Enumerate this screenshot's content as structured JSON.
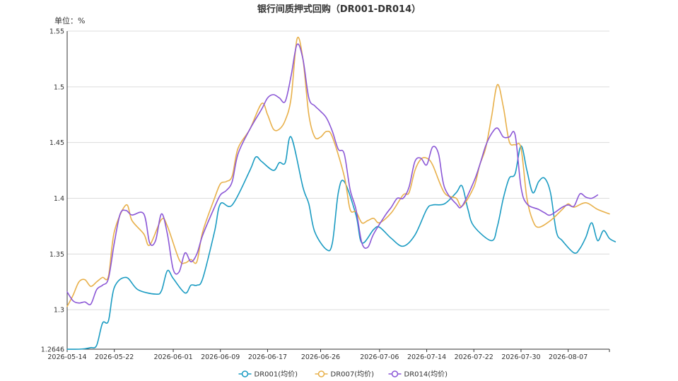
{
  "chart_data": {
    "type": "line",
    "title": "银行间质押式回购（DR001-DR014）",
    "unit_label": "单位：%",
    "xlabel": "",
    "ylabel": "",
    "ylim": [
      1.2646,
      1.55
    ],
    "y_ticks": [
      1.2646,
      1.3,
      1.35,
      1.4,
      1.45,
      1.5,
      1.55
    ],
    "y_tick_labels": [
      "1.2646",
      "1.3",
      "1.35",
      "1.4",
      "1.45",
      "1.5",
      "1.55"
    ],
    "x_range": [
      "2026-05-14",
      "2026-08-14"
    ],
    "x_ticks": [
      "2026-05-14",
      "2026-05-22",
      "2026-06-01",
      "2026-06-09",
      "2026-06-17",
      "2026-06-26",
      "2026-07-06",
      "2026-07-14",
      "2026-07-22",
      "2026-07-30",
      "2026-08-07"
    ],
    "grid": "horizontal",
    "legend_position": "bottom",
    "series": [
      {
        "name": "DR001(均价)",
        "color": "#1a9bc2",
        "points": [
          [
            "2026-05-14",
            1.2646
          ],
          [
            "2026-05-16",
            1.2646
          ],
          [
            "2026-05-17",
            1.265
          ],
          [
            "2026-05-18",
            1.266
          ],
          [
            "2026-05-19",
            1.268
          ],
          [
            "2026-05-20",
            1.288
          ],
          [
            "2026-05-21",
            1.29
          ],
          [
            "2026-05-22",
            1.32
          ],
          [
            "2026-05-24",
            1.329
          ],
          [
            "2026-05-26",
            1.318
          ],
          [
            "2026-05-29",
            1.314
          ],
          [
            "2026-05-30",
            1.317
          ],
          [
            "2026-05-31",
            1.335
          ],
          [
            "2026-06-01",
            1.328
          ],
          [
            "2026-06-03",
            1.315
          ],
          [
            "2026-06-04",
            1.322
          ],
          [
            "2026-06-05",
            1.322
          ],
          [
            "2026-06-06",
            1.328
          ],
          [
            "2026-06-08",
            1.37
          ],
          [
            "2026-06-09",
            1.395
          ],
          [
            "2026-06-11",
            1.394
          ],
          [
            "2026-06-14",
            1.425
          ],
          [
            "2026-06-15",
            1.437
          ],
          [
            "2026-06-16",
            1.433
          ],
          [
            "2026-06-18",
            1.425
          ],
          [
            "2026-06-19",
            1.432
          ],
          [
            "2026-06-20",
            1.432
          ],
          [
            "2026-06-21",
            1.455
          ],
          [
            "2026-06-23",
            1.41
          ],
          [
            "2026-06-24",
            1.395
          ],
          [
            "2026-06-25",
            1.37
          ],
          [
            "2026-06-27",
            1.354
          ],
          [
            "2026-06-28",
            1.36
          ],
          [
            "2026-06-29",
            1.405
          ],
          [
            "2026-06-30",
            1.415
          ],
          [
            "2026-07-02",
            1.385
          ],
          [
            "2026-07-03",
            1.36
          ],
          [
            "2026-07-05",
            1.372
          ],
          [
            "2026-07-06",
            1.374
          ],
          [
            "2026-07-08",
            1.364
          ],
          [
            "2026-07-10",
            1.357
          ],
          [
            "2026-07-12",
            1.367
          ],
          [
            "2026-07-14",
            1.39
          ],
          [
            "2026-07-15",
            1.394
          ],
          [
            "2026-07-17",
            1.395
          ],
          [
            "2026-07-19",
            1.405
          ],
          [
            "2026-07-20",
            1.411
          ],
          [
            "2026-07-21",
            1.39
          ],
          [
            "2026-07-22",
            1.375
          ],
          [
            "2026-07-25",
            1.362
          ],
          [
            "2026-07-26",
            1.375
          ],
          [
            "2026-07-27",
            1.4
          ],
          [
            "2026-07-28",
            1.418
          ],
          [
            "2026-07-29",
            1.422
          ],
          [
            "2026-07-30",
            1.447
          ],
          [
            "2026-07-31",
            1.425
          ],
          [
            "2026-08-01",
            1.405
          ],
          [
            "2026-08-02",
            1.415
          ],
          [
            "2026-08-03",
            1.418
          ],
          [
            "2026-08-04",
            1.405
          ],
          [
            "2026-08-05",
            1.37
          ],
          [
            "2026-08-06",
            1.362
          ],
          [
            "2026-08-08",
            1.351
          ],
          [
            "2026-08-09",
            1.355
          ],
          [
            "2026-08-10",
            1.365
          ],
          [
            "2026-08-11",
            1.378
          ],
          [
            "2026-08-12",
            1.362
          ],
          [
            "2026-08-13",
            1.371
          ],
          [
            "2026-08-14",
            1.364
          ],
          [
            "2026-08-15",
            1.361
          ]
        ]
      },
      {
        "name": "DR007(均价)",
        "color": "#e8b04a",
        "points": [
          [
            "2026-05-14",
            1.303
          ],
          [
            "2026-05-15",
            1.313
          ],
          [
            "2026-05-16",
            1.325
          ],
          [
            "2026-05-17",
            1.327
          ],
          [
            "2026-05-18",
            1.321
          ],
          [
            "2026-05-19",
            1.325
          ],
          [
            "2026-05-20",
            1.329
          ],
          [
            "2026-05-21",
            1.33
          ],
          [
            "2026-05-22",
            1.37
          ],
          [
            "2026-05-24",
            1.394
          ],
          [
            "2026-05-25",
            1.38
          ],
          [
            "2026-05-27",
            1.368
          ],
          [
            "2026-05-28",
            1.358
          ],
          [
            "2026-05-30",
            1.381
          ],
          [
            "2026-05-31",
            1.375
          ],
          [
            "2026-06-02",
            1.345
          ],
          [
            "2026-06-03",
            1.342
          ],
          [
            "2026-06-04",
            1.345
          ],
          [
            "2026-06-05",
            1.343
          ],
          [
            "2026-06-06",
            1.37
          ],
          [
            "2026-06-08",
            1.4
          ],
          [
            "2026-06-09",
            1.413
          ],
          [
            "2026-06-10",
            1.415
          ],
          [
            "2026-06-11",
            1.42
          ],
          [
            "2026-06-12",
            1.445
          ],
          [
            "2026-06-14",
            1.462
          ],
          [
            "2026-06-16",
            1.485
          ],
          [
            "2026-06-17",
            1.475
          ],
          [
            "2026-06-18",
            1.462
          ],
          [
            "2026-06-19",
            1.462
          ],
          [
            "2026-06-20",
            1.47
          ],
          [
            "2026-06-21",
            1.49
          ],
          [
            "2026-06-22",
            1.543
          ],
          [
            "2026-06-23",
            1.525
          ],
          [
            "2026-06-24",
            1.475
          ],
          [
            "2026-06-25",
            1.455
          ],
          [
            "2026-06-26",
            1.455
          ],
          [
            "2026-06-27",
            1.46
          ],
          [
            "2026-06-28",
            1.455
          ],
          [
            "2026-06-30",
            1.42
          ],
          [
            "2026-07-01",
            1.39
          ],
          [
            "2026-07-02",
            1.388
          ],
          [
            "2026-07-03",
            1.378
          ],
          [
            "2026-07-04",
            1.38
          ],
          [
            "2026-07-05",
            1.382
          ],
          [
            "2026-07-06",
            1.378
          ],
          [
            "2026-07-08",
            1.387
          ],
          [
            "2026-07-10",
            1.403
          ],
          [
            "2026-07-11",
            1.405
          ],
          [
            "2026-07-12",
            1.425
          ],
          [
            "2026-07-13",
            1.435
          ],
          [
            "2026-07-14",
            1.436
          ],
          [
            "2026-07-15",
            1.43
          ],
          [
            "2026-07-17",
            1.405
          ],
          [
            "2026-07-19",
            1.4
          ],
          [
            "2026-07-20",
            1.393
          ],
          [
            "2026-07-22",
            1.41
          ],
          [
            "2026-07-23",
            1.43
          ],
          [
            "2026-07-24",
            1.445
          ],
          [
            "2026-07-25",
            1.473
          ],
          [
            "2026-07-26",
            1.502
          ],
          [
            "2026-07-27",
            1.482
          ],
          [
            "2026-07-28",
            1.451
          ],
          [
            "2026-07-29",
            1.448
          ],
          [
            "2026-07-30",
            1.445
          ],
          [
            "2026-07-31",
            1.4
          ],
          [
            "2026-08-01",
            1.38
          ],
          [
            "2026-08-02",
            1.374
          ],
          [
            "2026-08-04",
            1.38
          ],
          [
            "2026-08-06",
            1.39
          ],
          [
            "2026-08-07",
            1.395
          ],
          [
            "2026-08-08",
            1.392
          ],
          [
            "2026-08-10",
            1.396
          ],
          [
            "2026-08-12",
            1.39
          ],
          [
            "2026-08-14",
            1.386
          ]
        ]
      },
      {
        "name": "DR014(均价)",
        "color": "#8b57d6",
        "points": [
          [
            "2026-05-14",
            1.316
          ],
          [
            "2026-05-15",
            1.308
          ],
          [
            "2026-05-16",
            1.306
          ],
          [
            "2026-05-17",
            1.307
          ],
          [
            "2026-05-18",
            1.305
          ],
          [
            "2026-05-19",
            1.318
          ],
          [
            "2026-05-20",
            1.322
          ],
          [
            "2026-05-21",
            1.328
          ],
          [
            "2026-05-22",
            1.36
          ],
          [
            "2026-05-23",
            1.386
          ],
          [
            "2026-05-24",
            1.389
          ],
          [
            "2026-05-25",
            1.385
          ],
          [
            "2026-05-27",
            1.386
          ],
          [
            "2026-05-28",
            1.36
          ],
          [
            "2026-05-29",
            1.362
          ],
          [
            "2026-05-30",
            1.386
          ],
          [
            "2026-05-31",
            1.368
          ],
          [
            "2026-06-01",
            1.336
          ],
          [
            "2026-06-02",
            1.334
          ],
          [
            "2026-06-03",
            1.351
          ],
          [
            "2026-06-04",
            1.343
          ],
          [
            "2026-06-05",
            1.35
          ],
          [
            "2026-06-06",
            1.367
          ],
          [
            "2026-06-08",
            1.392
          ],
          [
            "2026-06-09",
            1.403
          ],
          [
            "2026-06-10",
            1.407
          ],
          [
            "2026-06-11",
            1.415
          ],
          [
            "2026-06-12",
            1.44
          ],
          [
            "2026-06-14",
            1.462
          ],
          [
            "2026-06-16",
            1.48
          ],
          [
            "2026-06-17",
            1.49
          ],
          [
            "2026-06-18",
            1.493
          ],
          [
            "2026-06-19",
            1.49
          ],
          [
            "2026-06-20",
            1.487
          ],
          [
            "2026-06-21",
            1.51
          ],
          [
            "2026-06-22",
            1.538
          ],
          [
            "2026-06-23",
            1.525
          ],
          [
            "2026-06-24",
            1.49
          ],
          [
            "2026-06-25",
            1.483
          ],
          [
            "2026-06-26",
            1.478
          ],
          [
            "2026-06-27",
            1.472
          ],
          [
            "2026-06-28",
            1.46
          ],
          [
            "2026-06-29",
            1.444
          ],
          [
            "2026-06-30",
            1.44
          ],
          [
            "2026-07-01",
            1.408
          ],
          [
            "2026-07-02",
            1.39
          ],
          [
            "2026-07-03",
            1.36
          ],
          [
            "2026-07-04",
            1.356
          ],
          [
            "2026-07-05",
            1.368
          ],
          [
            "2026-07-07",
            1.385
          ],
          [
            "2026-07-08",
            1.392
          ],
          [
            "2026-07-09",
            1.4
          ],
          [
            "2026-07-10",
            1.4
          ],
          [
            "2026-07-11",
            1.41
          ],
          [
            "2026-07-12",
            1.433
          ],
          [
            "2026-07-13",
            1.436
          ],
          [
            "2026-07-14",
            1.43
          ],
          [
            "2026-07-15",
            1.446
          ],
          [
            "2026-07-16",
            1.44
          ],
          [
            "2026-07-17",
            1.41
          ],
          [
            "2026-07-19",
            1.395
          ],
          [
            "2026-07-20",
            1.393
          ],
          [
            "2026-07-22",
            1.415
          ],
          [
            "2026-07-23",
            1.43
          ],
          [
            "2026-07-24",
            1.447
          ],
          [
            "2026-07-25",
            1.458
          ],
          [
            "2026-07-26",
            1.463
          ],
          [
            "2026-07-27",
            1.455
          ],
          [
            "2026-07-28",
            1.455
          ],
          [
            "2026-07-29",
            1.457
          ],
          [
            "2026-07-30",
            1.41
          ],
          [
            "2026-07-31",
            1.395
          ],
          [
            "2026-08-02",
            1.39
          ],
          [
            "2026-08-03",
            1.387
          ],
          [
            "2026-08-04",
            1.385
          ],
          [
            "2026-08-06",
            1.392
          ],
          [
            "2026-08-07",
            1.394
          ],
          [
            "2026-08-08",
            1.393
          ],
          [
            "2026-08-09",
            1.404
          ],
          [
            "2026-08-10",
            1.401
          ],
          [
            "2026-08-11",
            1.4
          ],
          [
            "2026-08-12",
            1.403
          ]
        ]
      }
    ]
  }
}
